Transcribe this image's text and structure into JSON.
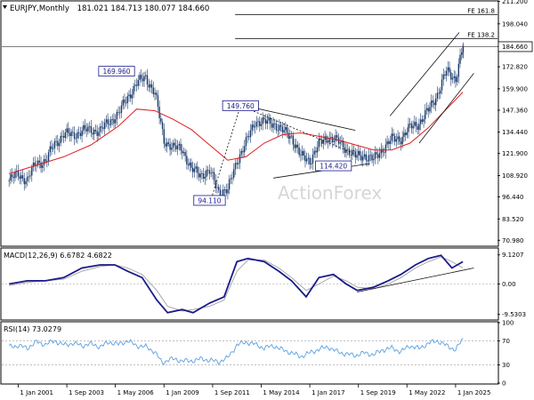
{
  "header": {
    "symbol": "EURJPY,Monthly",
    "ohlc": "181.021 184.713 180.077 184.660"
  },
  "watermark": "ActionForex",
  "colors": {
    "candle": "#1a3a6b",
    "ma": "#e02020",
    "macd": "#1a1a8c",
    "signal": "#a0a0a0",
    "rsi": "#5aa0e0",
    "line": "#111111",
    "label_border": "#1a1a8c",
    "watermark": "#d6d6d6"
  },
  "chart_data": [
    {
      "type": "line",
      "panel": "price",
      "ylim": [
        68,
        211
      ],
      "y_ticks": [
        "211.200",
        "198.040",
        "184.660",
        "172.820",
        "159.900",
        "147.360",
        "134.440",
        "121.900",
        "108.920",
        "96.440",
        "83.520",
        "70.980"
      ],
      "x_ticks": [
        "1 Jan 2001",
        "1 Sep 2003",
        "1 May 2006",
        "1 Jan 2009",
        "1 Sep 2011",
        "1 May 2014",
        "1 Jan 2017",
        "1 Sep 2019",
        "1 May 2022",
        "1 Jan 2025"
      ],
      "x_tick_years": [
        2001.0,
        2003.67,
        2006.33,
        2009.0,
        2011.67,
        2014.33,
        2017.0,
        2019.67,
        2022.33,
        2025.0
      ],
      "current_price": 184.66,
      "current_price_label": "184.660",
      "fib_levels": [
        {
          "label": "FE 161.8",
          "value": 203.5,
          "from_year": 2012.9
        },
        {
          "label": "FE 138.2",
          "value": 189.4,
          "from_year": 2012.9
        }
      ],
      "annotations": [
        {
          "label": "169.960",
          "year": 2006.4,
          "value": 169.96
        },
        {
          "label": "149.760",
          "year": 2013.2,
          "value": 149.76
        },
        {
          "label": "114.420",
          "year": 2018.3,
          "value": 114.42
        },
        {
          "label": "94.110",
          "year": 2011.5,
          "value": 94.11
        }
      ],
      "price_series": {
        "name": "EURJPY",
        "years": [
          2000.5,
          2001.0,
          2001.5,
          2002.0,
          2002.5,
          2003.0,
          2003.5,
          2004.0,
          2004.5,
          2005.0,
          2005.5,
          2006.0,
          2006.5,
          2007.0,
          2007.5,
          2008.0,
          2008.5,
          2009.0,
          2009.5,
          2010.0,
          2010.5,
          2011.0,
          2011.5,
          2012.0,
          2012.5,
          2013.0,
          2013.5,
          2014.0,
          2014.5,
          2015.0,
          2015.5,
          2016.0,
          2016.5,
          2017.0,
          2017.5,
          2018.0,
          2018.5,
          2019.0,
          2019.5,
          2020.0,
          2020.5,
          2021.0,
          2021.5,
          2022.0,
          2022.5,
          2023.0,
          2023.5,
          2024.0,
          2024.5,
          2025.0,
          2025.4
        ],
        "values": [
          106,
          110,
          106,
          117,
          117,
          128,
          133,
          133,
          135,
          136,
          135,
          141,
          145,
          155,
          163,
          167,
          157,
          130,
          125,
          125,
          112,
          110,
          111,
          100,
          100,
          118,
          128,
          141,
          140,
          140,
          135,
          132,
          120,
          118,
          127,
          132,
          129,
          125,
          120,
          121,
          118,
          125,
          130,
          131,
          137,
          140,
          147,
          157,
          170,
          166,
          184.66
        ]
      },
      "ma_series": {
        "years": [
          2000.5,
          2002.0,
          2003.5,
          2005.0,
          2006.5,
          2007.5,
          2008.5,
          2009.5,
          2010.5,
          2011.5,
          2012.5,
          2013.5,
          2014.5,
          2015.5,
          2016.5,
          2017.5,
          2018.5,
          2019.5,
          2020.5,
          2021.5,
          2022.5,
          2023.5,
          2024.5,
          2025.4
        ],
        "values": [
          110,
          115,
          120,
          127,
          138,
          148,
          147,
          142,
          136,
          127,
          118,
          120,
          128,
          133,
          134,
          132,
          130,
          127,
          124,
          124,
          128,
          137,
          148,
          158
        ]
      },
      "trendlines": [
        {
          "from": [
            2013.2,
            150.5
          ],
          "to": [
            2019.5,
            135.5
          ],
          "style": "solid"
        },
        {
          "from": [
            2015.0,
            107.5
          ],
          "to": [
            2020.3,
            116.0
          ],
          "style": "solid"
        },
        {
          "from": [
            2011.6,
            95.5
          ],
          "to": [
            2013.2,
            150.0
          ],
          "style": "dashed"
        },
        {
          "from": [
            2013.2,
            150.0
          ],
          "to": [
            2019.4,
            122.0
          ],
          "style": "dashed"
        },
        {
          "from": [
            2021.4,
            144.0
          ],
          "to": [
            2025.2,
            193.0
          ],
          "style": "solid"
        },
        {
          "from": [
            2023.0,
            128.0
          ],
          "to": [
            2026.0,
            169.0
          ],
          "style": "solid"
        }
      ]
    },
    {
      "type": "line",
      "panel": "macd",
      "title": "MACD(12,26,9) 6.6782 4.6822",
      "ylim": [
        -11,
        11
      ],
      "y_ticks": [
        "9.1207",
        "0.00",
        "-9.5303"
      ],
      "macd_series": {
        "name": "MACD",
        "years": [
          2000.5,
          2001.5,
          2002.5,
          2003.5,
          2004.5,
          2005.5,
          2006.3,
          2007.0,
          2007.8,
          2008.6,
          2009.2,
          2010.0,
          2010.6,
          2011.5,
          2012.3,
          2013.0,
          2013.6,
          2014.5,
          2015.3,
          2016.0,
          2016.8,
          2017.5,
          2018.3,
          2019.0,
          2019.6,
          2020.5,
          2021.3,
          2022.0,
          2022.8,
          2023.5,
          2024.2,
          2024.8,
          2025.4
        ],
        "values": [
          0,
          1,
          1,
          2,
          5,
          6,
          6,
          4,
          2,
          -5,
          -9,
          -8,
          -9,
          -6,
          -4,
          7,
          8,
          7,
          4,
          1,
          -4,
          2,
          3,
          0,
          -2,
          -1,
          1,
          3,
          6,
          8,
          9,
          5,
          7
        ]
      },
      "signal_series": {
        "name": "Signal",
        "years": [
          2000.5,
          2001.5,
          2002.5,
          2003.5,
          2004.5,
          2005.5,
          2006.3,
          2007.0,
          2007.8,
          2008.6,
          2009.2,
          2010.0,
          2010.6,
          2011.5,
          2012.3,
          2013.0,
          2013.6,
          2014.5,
          2015.3,
          2016.0,
          2016.8,
          2017.5,
          2018.3,
          2019.0,
          2019.6,
          2020.5,
          2021.3,
          2022.0,
          2022.8,
          2023.5,
          2024.2,
          2024.8,
          2025.4
        ],
        "values": [
          -0.5,
          0.5,
          1,
          1.5,
          4,
          5.5,
          6,
          5,
          3,
          -2,
          -7,
          -8.5,
          -8,
          -7,
          -5,
          4,
          7.5,
          7.5,
          5,
          2,
          -2,
          0,
          2.5,
          1,
          -1,
          -1.5,
          0,
          2,
          5,
          7,
          8.5,
          7,
          5
        ]
      },
      "trendline": {
        "from": [
          2019.6,
          -2.5
        ],
        "to": [
          2026.0,
          5.0
        ]
      }
    },
    {
      "type": "line",
      "panel": "rsi",
      "title": "RSI(14) 73.0279",
      "ylim": [
        0,
        100
      ],
      "y_ticks": [
        "100",
        "70",
        "30",
        "0"
      ],
      "reference_levels": [
        70,
        30
      ],
      "rsi_series": {
        "name": "RSI",
        "years": [
          2000.5,
          2001.0,
          2001.5,
          2002.0,
          2002.5,
          2003.0,
          2003.5,
          2004.0,
          2004.5,
          2005.0,
          2005.5,
          2006.0,
          2006.5,
          2007.0,
          2007.5,
          2008.0,
          2008.5,
          2008.9,
          2009.3,
          2009.8,
          2010.4,
          2011.0,
          2011.5,
          2012.0,
          2012.5,
          2013.0,
          2013.5,
          2014.0,
          2014.5,
          2015.0,
          2015.5,
          2016.0,
          2016.5,
          2017.0,
          2017.5,
          2018.0,
          2018.5,
          2019.0,
          2019.5,
          2020.0,
          2020.5,
          2021.0,
          2021.5,
          2022.0,
          2022.5,
          2023.0,
          2023.5,
          2024.0,
          2024.5,
          2025.0,
          2025.4
        ],
        "values": [
          60,
          62,
          58,
          68,
          64,
          70,
          63,
          66,
          62,
          65,
          60,
          68,
          64,
          70,
          62,
          60,
          52,
          33,
          40,
          38,
          36,
          40,
          38,
          35,
          42,
          63,
          68,
          64,
          58,
          62,
          55,
          50,
          44,
          50,
          56,
          60,
          52,
          48,
          46,
          50,
          47,
          55,
          58,
          52,
          62,
          57,
          66,
          70,
          62,
          55,
          73
        ]
      }
    }
  ]
}
